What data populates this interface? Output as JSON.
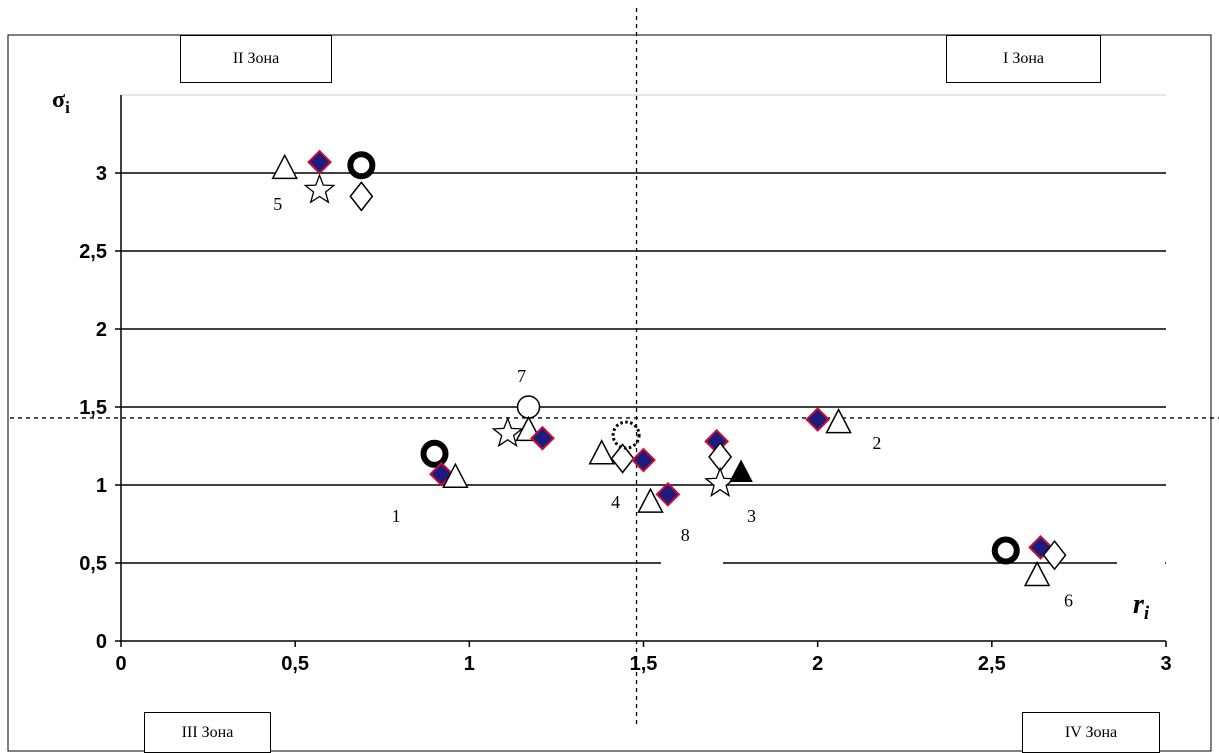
{
  "chart_data": {
    "type": "scatter",
    "xlabel_base": "r",
    "xlabel_sub": "i",
    "ylabel_base": "σ",
    "ylabel_sub": "i",
    "xlim": [
      0,
      3
    ],
    "ylim": [
      0,
      3.5
    ],
    "x_ticks": [
      "0",
      "0,5",
      "1",
      "1,5",
      "2",
      "2,5",
      "3"
    ],
    "y_ticks": [
      "0",
      "0,5",
      "1",
      "1,5",
      "2",
      "2,5",
      "3"
    ],
    "gridlines_y": [
      0.5,
      1,
      1.5,
      2,
      2.5,
      3,
      3.5
    ],
    "threshold_x": 1.48,
    "threshold_y": 1.43,
    "zones": {
      "zone2": "II Зона",
      "zone1": "I Зона",
      "zone3": "III Зона",
      "zone4": "IV Зона"
    },
    "point_labels": [
      {
        "text": "1",
        "x": 0.79,
        "y": 0.8
      },
      {
        "text": "2",
        "x": 2.17,
        "y": 1.27
      },
      {
        "text": "3",
        "x": 1.81,
        "y": 0.8
      },
      {
        "text": "4",
        "x": 1.42,
        "y": 0.89
      },
      {
        "text": "5",
        "x": 0.45,
        "y": 2.8
      },
      {
        "text": "6",
        "x": 2.72,
        "y": 0.26
      },
      {
        "text": "7",
        "x": 1.15,
        "y": 1.7
      },
      {
        "text": "8",
        "x": 1.62,
        "y": 0.68
      }
    ],
    "markers": [
      {
        "shape": "triangle-open",
        "x": 0.47,
        "y": 3.03
      },
      {
        "shape": "diamond-filled",
        "x": 0.57,
        "y": 3.07
      },
      {
        "shape": "star-open",
        "x": 0.57,
        "y": 2.89
      },
      {
        "shape": "ring-thick",
        "x": 0.69,
        "y": 3.05
      },
      {
        "shape": "diamond-open",
        "x": 0.69,
        "y": 2.85
      },
      {
        "shape": "ring-thick",
        "x": 0.9,
        "y": 1.2
      },
      {
        "shape": "diamond-filled",
        "x": 0.92,
        "y": 1.07
      },
      {
        "shape": "triangle-open",
        "x": 0.96,
        "y": 1.05
      },
      {
        "shape": "circle-open",
        "x": 1.17,
        "y": 1.5
      },
      {
        "shape": "star-open",
        "x": 1.11,
        "y": 1.33
      },
      {
        "shape": "triangle-open",
        "x": 1.17,
        "y": 1.35
      },
      {
        "shape": "diamond-filled",
        "x": 1.21,
        "y": 1.3
      },
      {
        "shape": "triangle-open",
        "x": 1.38,
        "y": 1.2
      },
      {
        "shape": "diamond-open",
        "x": 1.44,
        "y": 1.17
      },
      {
        "shape": "circle-dotted",
        "x": 1.45,
        "y": 1.32
      },
      {
        "shape": "diamond-filled",
        "x": 1.5,
        "y": 1.16
      },
      {
        "shape": "triangle-open",
        "x": 1.52,
        "y": 0.89
      },
      {
        "shape": "diamond-filled",
        "x": 1.57,
        "y": 0.94
      },
      {
        "shape": "diamond-filled",
        "x": 1.71,
        "y": 1.28
      },
      {
        "shape": "diamond-open",
        "x": 1.72,
        "y": 1.18
      },
      {
        "shape": "star-open",
        "x": 1.72,
        "y": 1.01
      },
      {
        "shape": "triangle-filled",
        "x": 1.78,
        "y": 1.08
      },
      {
        "shape": "diamond-filled",
        "x": 2.0,
        "y": 1.42
      },
      {
        "shape": "triangle-open",
        "x": 2.06,
        "y": 1.4
      },
      {
        "shape": "ring-thick",
        "x": 2.54,
        "y": 0.58
      },
      {
        "shape": "diamond-filled",
        "x": 2.64,
        "y": 0.6
      },
      {
        "shape": "diamond-open",
        "x": 2.68,
        "y": 0.55
      },
      {
        "shape": "triangle-open",
        "x": 2.63,
        "y": 0.42
      }
    ]
  }
}
